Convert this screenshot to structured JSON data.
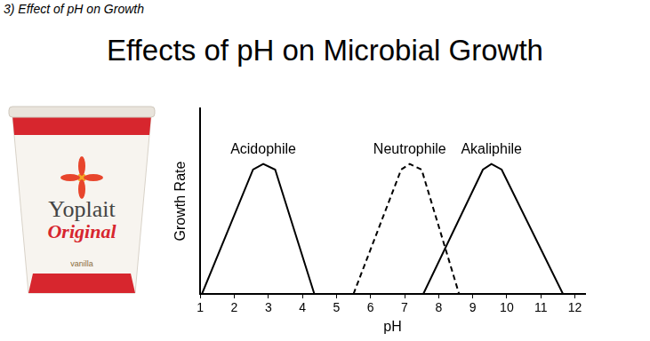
{
  "header": "3) Effect of pH on Growth",
  "product_image": {
    "brand": "Yoplait",
    "variety": "Original",
    "flavor": "vanilla"
  },
  "chart_data": {
    "type": "line",
    "title": "Effects of pH on Microbial Growth",
    "x_label": "pH",
    "y_label": "Growth Rate",
    "xlim": [
      1,
      12.3
    ],
    "xticks": [
      1,
      2,
      3,
      4,
      5,
      6,
      7,
      8,
      9,
      10,
      11,
      12
    ],
    "ylim": [
      0,
      10
    ],
    "grid": false,
    "tick_labels": "x",
    "data_labels": false,
    "series": [
      {
        "name": "Acidophile",
        "color": "#000000",
        "line_style": "solid",
        "x": [
          1.05,
          2.55,
          2.85,
          3.2,
          4.35
        ],
        "values": [
          0,
          6.7,
          7,
          6.7,
          0
        ]
      },
      {
        "name": "Neutrophile",
        "color": "#000000",
        "line_style": "dashed",
        "x": [
          5.5,
          6.9,
          7.15,
          7.5,
          8.6
        ],
        "values": [
          0,
          6.7,
          7,
          6.7,
          0
        ]
      },
      {
        "name": "Akaliphile",
        "color": "#000000",
        "line_style": "solid",
        "x": [
          7.55,
          9.3,
          9.55,
          9.85,
          11.65
        ],
        "values": [
          0,
          6.7,
          7,
          6.7,
          0
        ]
      }
    ]
  }
}
